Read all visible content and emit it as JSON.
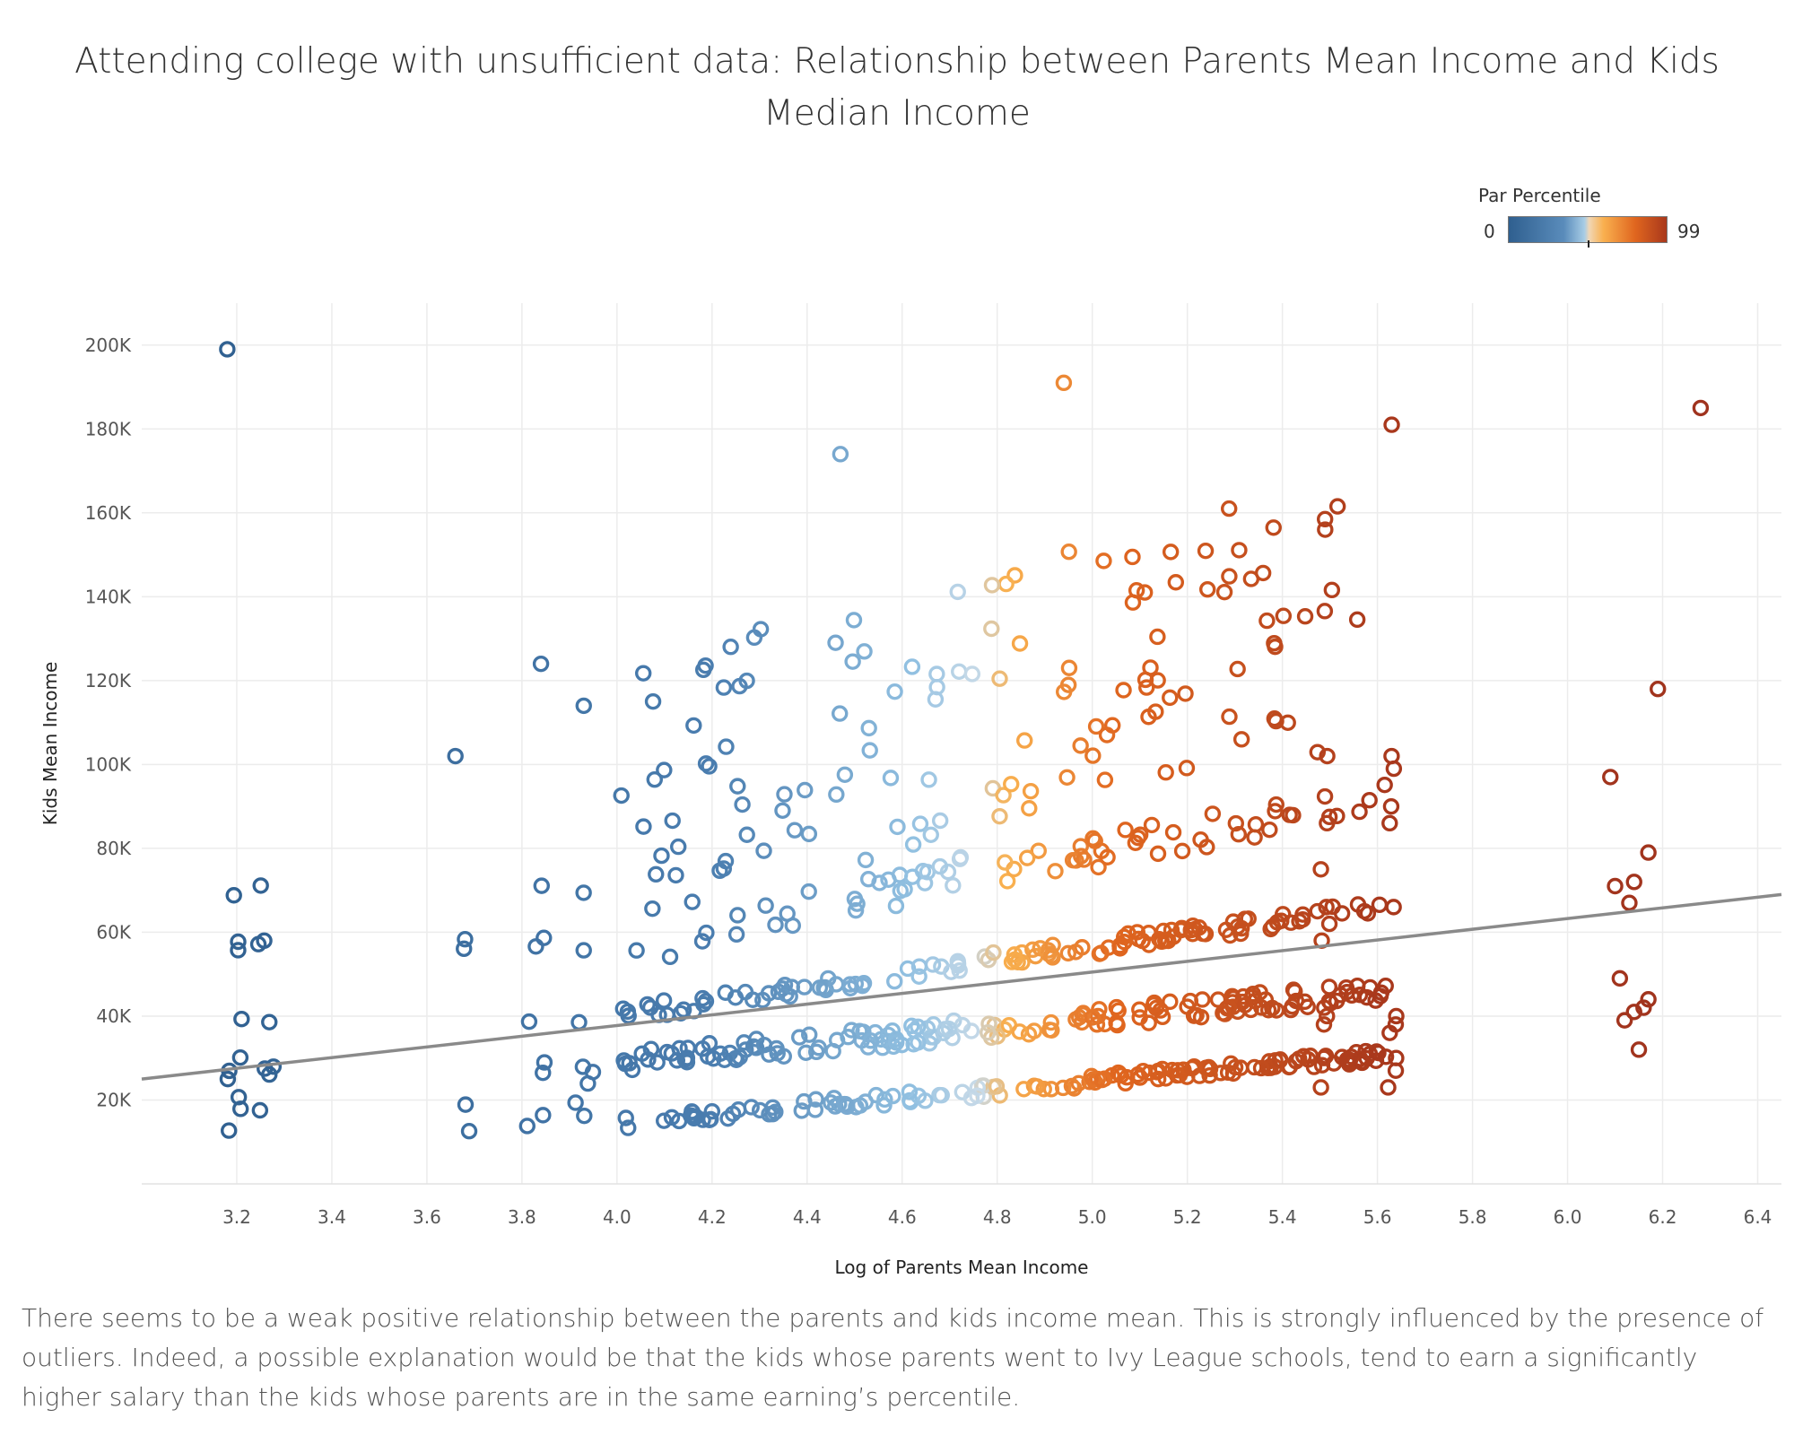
{
  "title": "Attending college with unsufficient data: Relationship between Parents Mean Income and Kids Median Income",
  "caption": "There seems to be a weak positive relationship between the parents and kids income mean. This is strongly influenced by the presence of outliers. Indeed, a possible explanation would be that the kids whose parents went to Ivy League schools, tend to earn a significantly higher salary than the kids whose parents are in the same earning’s percentile.",
  "legend": {
    "title": "Par Percentile",
    "min_label": "0",
    "max_label": "99",
    "placement": "top-right"
  },
  "colors": {
    "low": "#2f5f8f",
    "light": "#a8cde6",
    "mid": "#f9b04f",
    "high": "#a9381c",
    "trend": "#8a8a8a",
    "grid": "#ececec"
  },
  "chart_data": {
    "type": "scatter",
    "xlabel": "Log of Parents Mean Income",
    "ylabel": "Kids Mean Income",
    "xlim": [
      3.0,
      6.45
    ],
    "ylim": [
      0,
      210000
    ],
    "x_ticks": [
      "3.2",
      "3.4",
      "3.6",
      "3.8",
      "4.0",
      "4.2",
      "4.4",
      "4.6",
      "4.8",
      "5.0",
      "5.2",
      "5.4",
      "5.6",
      "5.8",
      "6.0",
      "6.2",
      "6.4"
    ],
    "y_ticks": [
      "20K",
      "40K",
      "60K",
      "80K",
      "100K",
      "120K",
      "140K",
      "160K",
      "180K",
      "200K"
    ],
    "grid": true,
    "color_by": "Par Percentile",
    "trend_line": {
      "x": [
        3.0,
        6.45
      ],
      "y": [
        25000,
        69000
      ]
    },
    "outliers": [
      {
        "x": 3.18,
        "y": 199000
      },
      {
        "x": 4.47,
        "y": 174000
      },
      {
        "x": 4.94,
        "y": 191000
      },
      {
        "x": 5.63,
        "y": 181000
      },
      {
        "x": 6.28,
        "y": 185000
      },
      {
        "x": 5.49,
        "y": 156000
      },
      {
        "x": 6.19,
        "y": 118000
      },
      {
        "x": 6.09,
        "y": 97000
      },
      {
        "x": 3.66,
        "y": 102000
      },
      {
        "x": 3.84,
        "y": 124000
      },
      {
        "x": 3.93,
        "y": 114000
      }
    ]
  }
}
